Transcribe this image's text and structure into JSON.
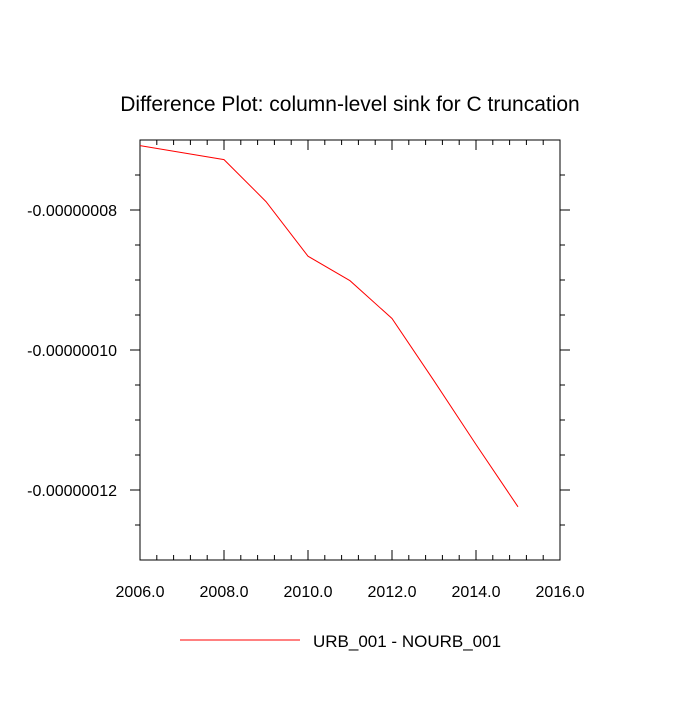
{
  "chart_data": {
    "type": "line",
    "title": "Difference Plot: column-level sink for C truncation",
    "xlabel": "",
    "ylabel": "",
    "xlim": [
      2006.0,
      2016.0
    ],
    "ylim": [
      -1.3e-07,
      -7e-08
    ],
    "x_ticks": [
      2006,
      2008,
      2010,
      2012,
      2014,
      2016
    ],
    "x_tick_labels": [
      "2006.0",
      "2008.0",
      "2010.0",
      "2012.0",
      "2014.0",
      "2016.0"
    ],
    "y_ticks": [
      -8e-08,
      -1e-07,
      -1.2e-07
    ],
    "y_tick_labels": [
      "-0.00000008",
      "-0.00000010",
      "-0.00000012"
    ],
    "grid": false,
    "legend_position": "bottom-center",
    "series": [
      {
        "name": "URB_001 - NOURB_001",
        "color": "#ff0000",
        "x": [
          2006,
          2007,
          2008,
          2009,
          2010,
          2011,
          2012,
          2013,
          2014,
          2015
        ],
        "y": [
          -7.08e-08,
          -7.18e-08,
          -7.28e-08,
          -7.88e-08,
          -8.66e-08,
          -9.01e-08,
          -9.55e-08,
          -1.044e-07,
          -1.135e-07,
          -1.224e-07
        ]
      }
    ]
  }
}
